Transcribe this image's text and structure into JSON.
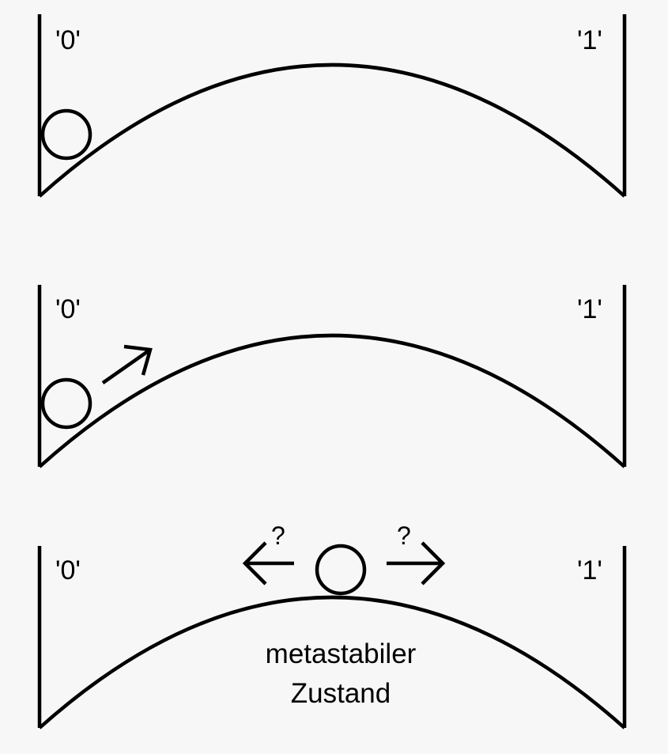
{
  "panels": [
    {
      "state_left": "'0'",
      "state_right": "'1'"
    },
    {
      "state_left": "'0'",
      "state_right": "'1'",
      "arrow": "push-right-arrow"
    },
    {
      "state_left": "'0'",
      "state_right": "'1'",
      "question_left": "?",
      "question_right": "?",
      "caption_line1": "metastabiler",
      "caption_line2": "Zustand"
    }
  ]
}
